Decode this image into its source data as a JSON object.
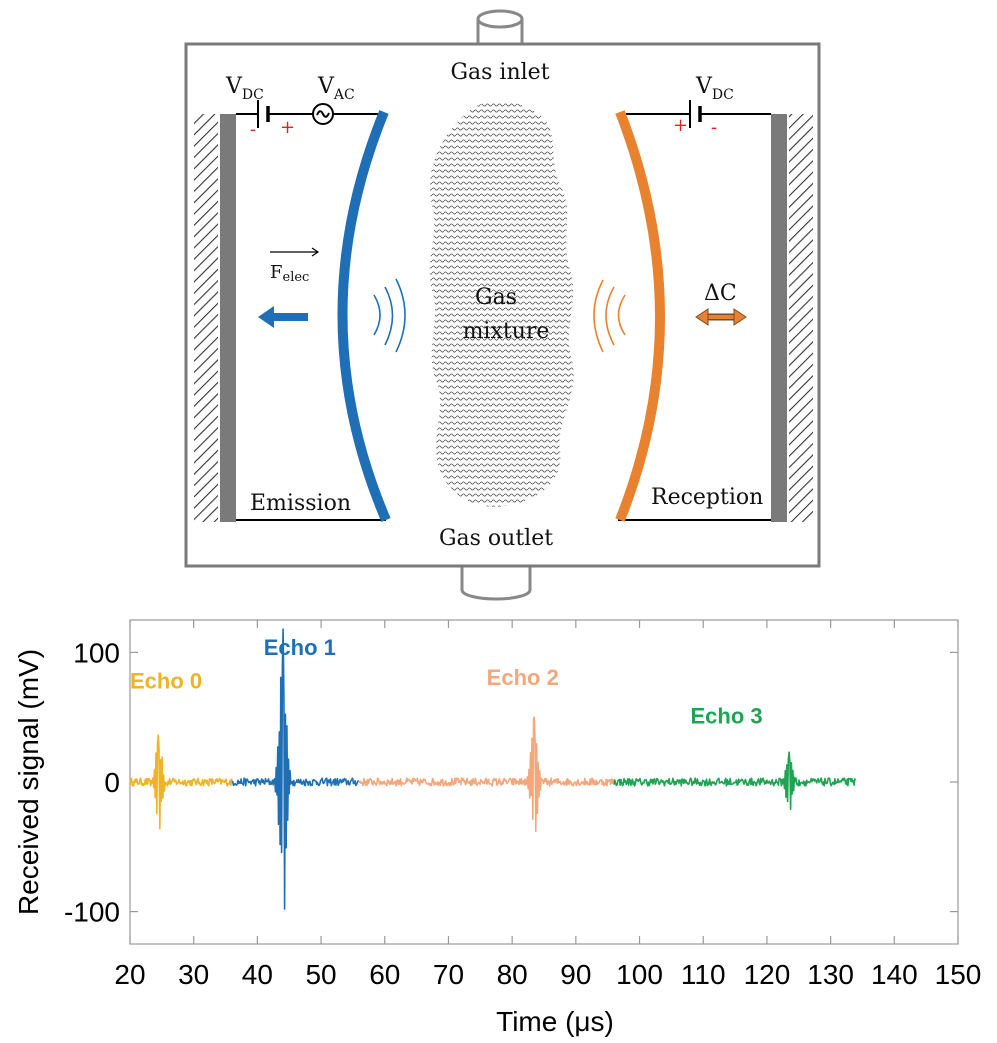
{
  "diagram": {
    "gas_inlet": "Gas inlet",
    "gas_outlet": "Gas outlet",
    "vdc_left": {
      "main": "V",
      "sub": "DC"
    },
    "vac": {
      "main": "V",
      "sub": "AC"
    },
    "vdc_right": {
      "main": "V",
      "sub": "DC"
    },
    "minus_sign": "-",
    "plus_sign": "+",
    "felec": {
      "main": "F",
      "sub": "elec"
    },
    "gas_mixture_line1": "Gas",
    "gas_mixture_line2": "mixture",
    "delta_c": "ΔC",
    "emission": "Emission",
    "reception": "Reception",
    "colors": {
      "emission": "#1f6fb6",
      "reception": "#e8822e",
      "electrode": "#7a7a7a",
      "frame": "#7a7a7a"
    }
  },
  "chart_data": {
    "type": "line",
    "xlabel": "Time (μs)",
    "ylabel": "Received signal (mV)",
    "xlim": [
      20,
      150
    ],
    "ylim": [
      -125,
      125
    ],
    "xticks": [
      "20",
      "30",
      "40",
      "50",
      "60",
      "70",
      "80",
      "90",
      "100",
      "110",
      "120",
      "130",
      "140",
      "150"
    ],
    "yticks": [
      {
        "value": 100,
        "label": "100"
      },
      {
        "value": 0,
        "label": "0"
      },
      {
        "value": -100,
        "label": "-100"
      }
    ],
    "grid": false,
    "series": [
      {
        "name": "Echo 0",
        "color": "#f0b323",
        "x_range": [
          20,
          36
        ],
        "peak_time": 24.5,
        "peak_max": 36,
        "peak_min": -36,
        "label_at": [
          20,
          72
        ]
      },
      {
        "name": "Echo 1",
        "color": "#1f6fb6",
        "x_range": [
          36,
          56
        ],
        "peak_time": 44,
        "peak_max": 118,
        "peak_min": -98,
        "label_at": [
          41,
          98
        ]
      },
      {
        "name": "Echo 2",
        "color": "#f4a77a",
        "x_range": [
          56,
          96
        ],
        "peak_time": 83.5,
        "peak_max": 50,
        "peak_min": -38,
        "label_at": [
          76,
          75
        ]
      },
      {
        "name": "Echo 3",
        "color": "#1ea552",
        "x_range": [
          96,
          134
        ],
        "peak_time": 123.5,
        "peak_max": 23,
        "peak_min": -21,
        "label_at": [
          108,
          45
        ]
      }
    ]
  }
}
